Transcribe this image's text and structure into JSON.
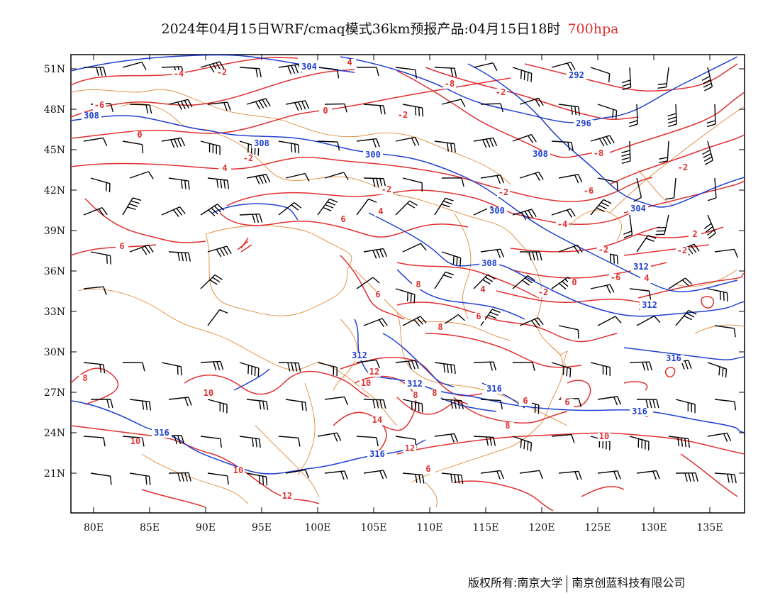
{
  "title": {
    "main": "2024年04月15日WRF/cmaq模式36km预报产品:04月15日18时",
    "level": "700hpa"
  },
  "axes": {
    "lat_labels": [
      "51N",
      "48N",
      "45N",
      "42N",
      "39N",
      "36N",
      "33N",
      "30N",
      "27N",
      "24N",
      "21N"
    ],
    "lon_labels": [
      "80E",
      "85E",
      "90E",
      "95E",
      "100E",
      "105E",
      "110E",
      "115E",
      "120E",
      "125E",
      "130E",
      "135E"
    ]
  },
  "height_labels": [
    "304",
    "292",
    "308",
    "296",
    "308",
    "300",
    "308",
    "300",
    "304",
    "312",
    "308",
    "312",
    "312",
    "312",
    "316",
    "316",
    "316",
    "316",
    "316"
  ],
  "temp_labels": [
    "4",
    "-2",
    "-4",
    "-6",
    "-8",
    "-2",
    "0",
    "-2",
    "-2",
    "-8",
    "0",
    "4",
    "-2",
    "-6",
    "-2",
    "-2",
    "4",
    "-4",
    "2",
    "6",
    "-2",
    "-2",
    "-6",
    "0",
    "4",
    "6",
    "8",
    "4",
    "-2",
    "6",
    "8",
    "6",
    "2",
    "8",
    "10",
    "12",
    "10",
    "8",
    "8",
    "6",
    "6",
    "8",
    "8",
    "14",
    "10",
    "12",
    "10",
    "10",
    "12",
    "6"
  ],
  "colors": {
    "temperature_contour": "#e03030",
    "height_contour": "#2040d0",
    "boundary": "#e08a3a",
    "wind_barb": "#000000",
    "level_text": "#e03030"
  },
  "footer": {
    "left": "版权所有:南京大学",
    "right": "南京创蓝科技有限公司"
  }
}
